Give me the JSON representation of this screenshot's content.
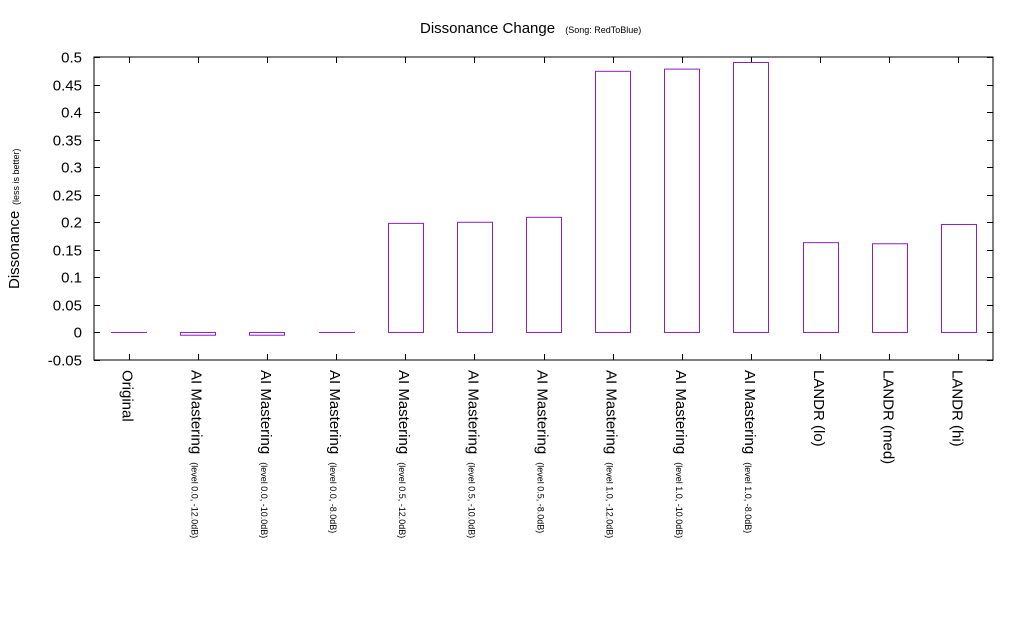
{
  "chart_data": {
    "type": "bar",
    "title": "Dissonance Change",
    "subtitle": "(Song: RedToBlue)",
    "ylabel": "Dissonance",
    "ylabel_note": "(less is better)",
    "ylim": [
      -0.05,
      0.5
    ],
    "yticks": [
      "-0.05",
      "0",
      "0.05",
      "0.1",
      "0.15",
      "0.2",
      "0.25",
      "0.3",
      "0.35",
      "0.4",
      "0.45",
      "0.5"
    ],
    "categories": [
      {
        "main": "Original",
        "sub": ""
      },
      {
        "main": "AI Mastering",
        "sub": "(level 0.0, -12.0dB)"
      },
      {
        "main": "AI Mastering",
        "sub": "(level 0.0, -10.0dB)"
      },
      {
        "main": "AI Mastering",
        "sub": "(level 0.0, -8.0dB)"
      },
      {
        "main": "AI Mastering",
        "sub": "(level 0.5, -12.0dB)"
      },
      {
        "main": "AI Mastering",
        "sub": "(level 0.5, -10.0dB)"
      },
      {
        "main": "AI Mastering",
        "sub": "(level 0.5, -8.0dB)"
      },
      {
        "main": "AI Mastering",
        "sub": "(level 1.0, -12.0dB)"
      },
      {
        "main": "AI Mastering",
        "sub": "(level 1.0, -10.0dB)"
      },
      {
        "main": "AI Mastering",
        "sub": "(level 1.0, -8.0dB)"
      },
      {
        "main": "LANDR (lo)",
        "sub": ""
      },
      {
        "main": "LANDR (med)",
        "sub": ""
      },
      {
        "main": "LANDR (hi)",
        "sub": ""
      }
    ],
    "values": [
      0.0,
      -0.005,
      -0.005,
      0.0,
      0.198,
      0.2,
      0.209,
      0.474,
      0.478,
      0.49,
      0.163,
      0.161,
      0.196
    ],
    "bar_color": "#8b1ec4",
    "grid": false,
    "legend": "none"
  }
}
